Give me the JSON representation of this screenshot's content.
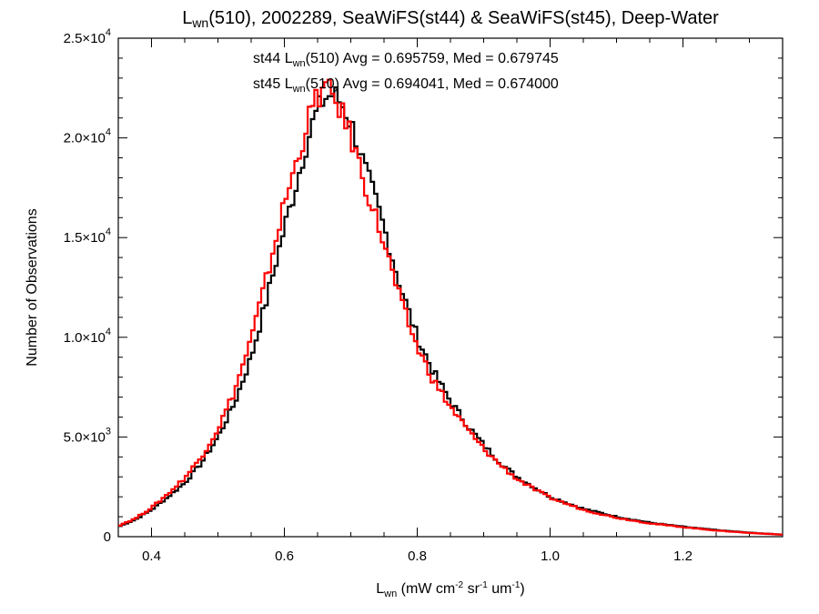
{
  "chart_data": {
    "type": "line",
    "title": {
      "main": "L",
      "sub": "wn",
      "rest": "(510), 2002289, SeaWiFS(st44) & SeaWiFS(st45), Deep-Water"
    },
    "xlabel": {
      "main": "L",
      "sub": "wn",
      "rest": " (mW cm",
      "sup1": "-2",
      "rest2": " sr",
      "sup2": "-1",
      "rest3": " um",
      "sup3": "-1",
      "rest4": ")"
    },
    "ylabel": "Number of Observations",
    "xlim": [
      0.35,
      1.35
    ],
    "ylim": [
      0,
      25000
    ],
    "x_ticks": [
      {
        "value": 0.4,
        "label": "0.4"
      },
      {
        "value": 0.6,
        "label": "0.6"
      },
      {
        "value": 0.8,
        "label": "0.8"
      },
      {
        "value": 1.0,
        "label": "1.0"
      },
      {
        "value": 1.2,
        "label": "1.2"
      }
    ],
    "y_ticks": [
      {
        "value": 0,
        "mant": "0",
        "exp": ""
      },
      {
        "value": 5000,
        "mant": "5.0×10",
        "exp": "3"
      },
      {
        "value": 10000,
        "mant": "1.0×10",
        "exp": "4"
      },
      {
        "value": 15000,
        "mant": "1.5×10",
        "exp": "4"
      },
      {
        "value": 20000,
        "mant": "2.0×10",
        "exp": "4"
      },
      {
        "value": 25000,
        "mant": "2.5×10",
        "exp": "4"
      }
    ],
    "annotations": [
      {
        "pre": "st44 L",
        "sub": "wn",
        "post": "(510) Avg = 0.695759, Med = 0.679745",
        "color": "#000000"
      },
      {
        "pre": "st45 L",
        "sub": "wn",
        "post": "(510) Avg = 0.694041, Med = 0.674000",
        "color": "#ff0000"
      }
    ],
    "series": [
      {
        "color": "#000000",
        "x": [
          0.35,
          0.375,
          0.4,
          0.425,
          0.45,
          0.475,
          0.5,
          0.525,
          0.55,
          0.575,
          0.6,
          0.615,
          0.63,
          0.645,
          0.66,
          0.675,
          0.69,
          0.705,
          0.72,
          0.735,
          0.75,
          0.775,
          0.8,
          0.825,
          0.85,
          0.875,
          0.9,
          0.925,
          0.95,
          0.975,
          1.0,
          1.05,
          1.1,
          1.15,
          1.2,
          1.25,
          1.3,
          1.35
        ],
        "values": [
          500,
          850,
          1350,
          2000,
          2700,
          3700,
          5000,
          6700,
          9000,
          12100,
          15500,
          17300,
          19300,
          21000,
          22000,
          22200,
          21500,
          20300,
          18600,
          17100,
          15500,
          12500,
          10000,
          8200,
          6800,
          5600,
          4600,
          3700,
          3000,
          2500,
          2000,
          1400,
          1000,
          700,
          500,
          330,
          200,
          100
        ]
      },
      {
        "color": "#ff0000",
        "x": [
          0.35,
          0.375,
          0.4,
          0.425,
          0.45,
          0.475,
          0.5,
          0.525,
          0.55,
          0.575,
          0.6,
          0.615,
          0.63,
          0.645,
          0.66,
          0.675,
          0.69,
          0.705,
          0.72,
          0.735,
          0.75,
          0.775,
          0.8,
          0.825,
          0.85,
          0.875,
          0.9,
          0.925,
          0.95,
          0.975,
          1.0,
          1.05,
          1.1,
          1.15,
          1.2,
          1.25,
          1.3,
          1.35
        ],
        "values": [
          550,
          900,
          1450,
          2150,
          2950,
          4000,
          5400,
          7300,
          9900,
          13200,
          16700,
          18400,
          20200,
          21800,
          22500,
          22000,
          21000,
          19600,
          17800,
          16300,
          14700,
          11800,
          9500,
          7800,
          6500,
          5400,
          4400,
          3600,
          2900,
          2400,
          1950,
          1350,
          950,
          670,
          480,
          310,
          190,
          100
        ]
      }
    ]
  }
}
